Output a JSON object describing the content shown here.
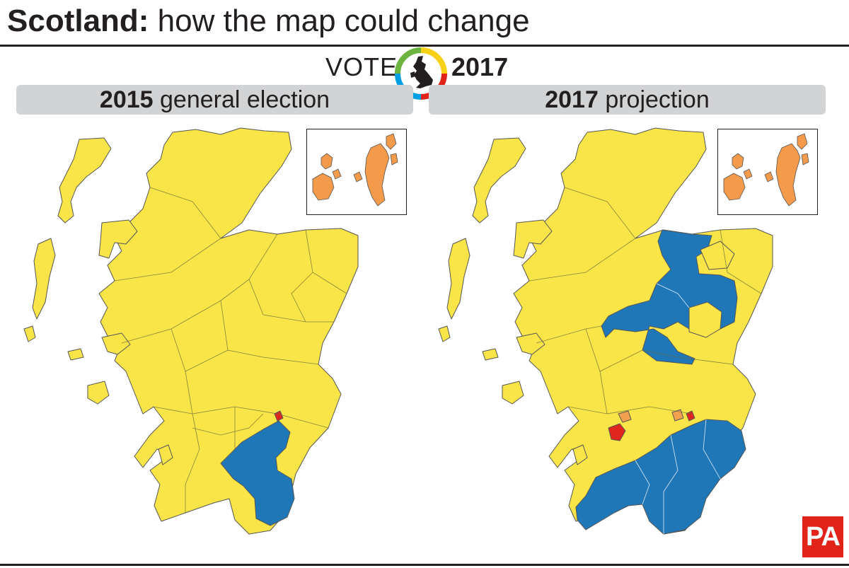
{
  "headline": {
    "bold": "Scotland:",
    "rest": " how the map could change"
  },
  "logo": {
    "vote": "VOTE",
    "year": "2017",
    "ring_colors": [
      "#e2231a",
      "#f7d117",
      "#009fe3",
      "#6cb33f"
    ]
  },
  "panels": [
    {
      "id": "2015",
      "title_bold": "2015",
      "title_rest": " general election"
    },
    {
      "id": "2017",
      "title_bold": "2017",
      "title_rest": " projection"
    }
  ],
  "party_colors": {
    "snp": "#f9e547",
    "conservative": "#1f77b8",
    "labour": "#e0261f",
    "libdem": "#f39a4b",
    "labour_gain_light": "#f2a24e"
  },
  "brand": {
    "mark": "PA"
  }
}
